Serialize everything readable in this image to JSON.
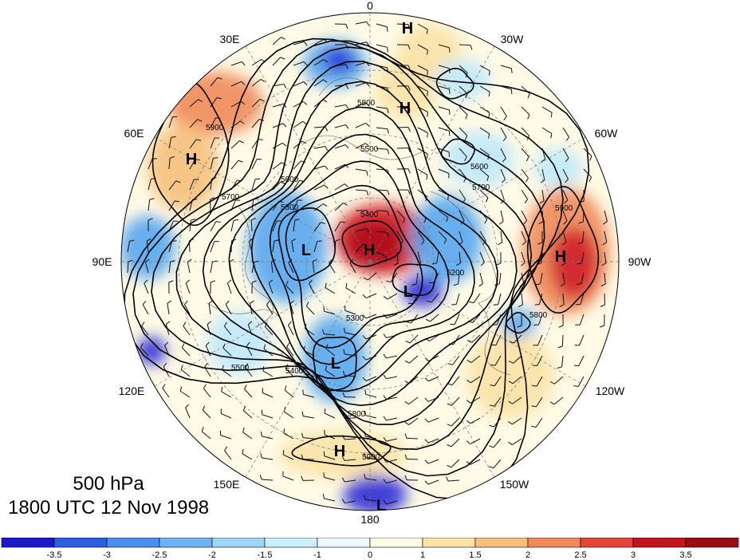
{
  "title": {
    "level": "500 hPa",
    "datetime": "1800 UTC 12 Nov 1998"
  },
  "map": {
    "projection": "north polar stereographic",
    "longitude_labels": [
      "0",
      "30W",
      "60W",
      "90W",
      "120W",
      "150W",
      "180",
      "150E",
      "120E",
      "90E",
      "60E",
      "30E"
    ],
    "contour_labels": [
      "5900",
      "5800",
      "5700",
      "5600",
      "5500",
      "5400",
      "5300",
      "5200",
      "5300",
      "5400",
      "5500",
      "5600",
      "5700",
      "5800",
      "5900",
      "5800",
      "5900"
    ],
    "highs_lows": [
      {
        "label": "H",
        "kind": "high"
      },
      {
        "label": "H",
        "kind": "high"
      },
      {
        "label": "H",
        "kind": "high"
      },
      {
        "label": "H",
        "kind": "high"
      },
      {
        "label": "H",
        "kind": "high"
      },
      {
        "label": "H",
        "kind": "high"
      },
      {
        "label": "L",
        "kind": "low"
      },
      {
        "label": "L",
        "kind": "low"
      },
      {
        "label": "L",
        "kind": "low"
      },
      {
        "label": "L",
        "kind": "low"
      }
    ],
    "colors": {
      "strong_neg": "#2b2bd6",
      "neg": "#58a6f0",
      "weak_neg": "#bfe8fb",
      "neutral": "#fffbe6",
      "weak_pos": "#fbe2a6",
      "pos": "#f08a5a",
      "strong_pos": "#d0202a"
    }
  },
  "colorbar": {
    "tick_labels": [
      "-3.5",
      "-3",
      "-2.5",
      "-2",
      "-1.5",
      "-1",
      "0",
      "1",
      "1.5",
      "2",
      "2.5",
      "3",
      "3.5"
    ],
    "colors": [
      "#1a1ac8",
      "#2f5fe0",
      "#4a8ff0",
      "#6fb2f5",
      "#9fd6f8",
      "#cdeefb",
      "#eef9fd",
      "#fffbe6",
      "#fbe2a6",
      "#f6c07c",
      "#f08a5a",
      "#e2453a",
      "#c4151f",
      "#9c0a14"
    ]
  }
}
